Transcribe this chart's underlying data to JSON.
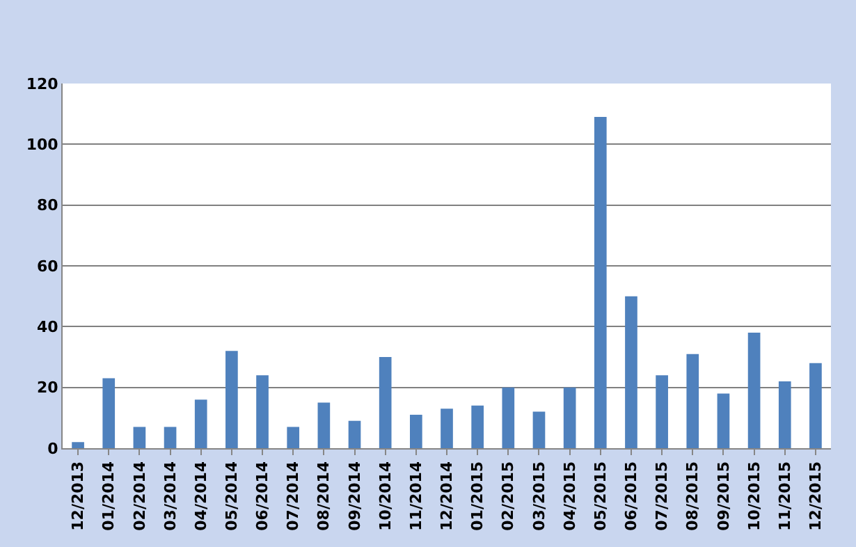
{
  "chart_data": {
    "type": "bar",
    "categories": [
      "12/2013",
      "01/2014",
      "02/2014",
      "03/2014",
      "04/2014",
      "05/2014",
      "06/2014",
      "07/2014",
      "08/2014",
      "09/2014",
      "10/2014",
      "11/2014",
      "12/2014",
      "01/2015",
      "02/2015",
      "03/2015",
      "04/2015",
      "05/2015",
      "06/2015",
      "07/2015",
      "08/2015",
      "09/2015",
      "10/2015",
      "11/2015",
      "12/2015"
    ],
    "values": [
      2,
      23,
      7,
      7,
      16,
      32,
      24,
      7,
      15,
      9,
      30,
      11,
      13,
      14,
      20,
      12,
      20,
      109,
      50,
      24,
      31,
      18,
      38,
      22,
      28
    ],
    "color": "#4f81bd",
    "ylim": [
      0,
      120
    ],
    "yticks": [
      0,
      20,
      40,
      60,
      80,
      100,
      120
    ],
    "grid": "y"
  }
}
